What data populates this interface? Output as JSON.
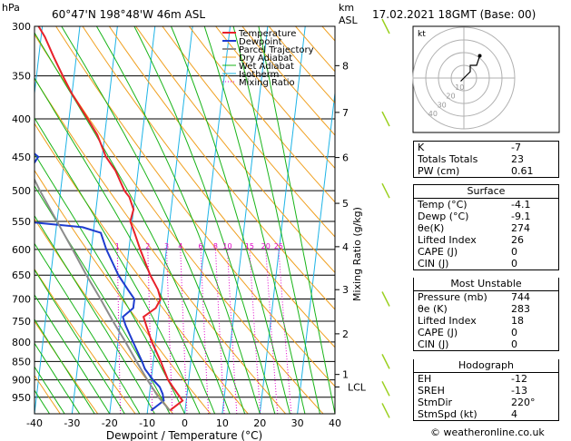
{
  "header": {
    "pressure_unit": "hPa",
    "location": "60°47'N  198°48'W  46m  ASL",
    "km_unit": "km",
    "asl_unit": "ASL",
    "datetime": "17.02.2021  18GMT  (Base: 00)"
  },
  "colors": {
    "temperature": "#e8212a",
    "dewpoint": "#1e3ccf",
    "parcel": "#8c8c8c",
    "dry_adiabat": "#f0a020",
    "wet_adiabat": "#18b418",
    "isotherm": "#1eb4e6",
    "mixing_ratio": "#e000c8"
  },
  "legend": [
    "Temperature",
    "Dewpoint",
    "Parcel Trajectory",
    "Dry Adiabat",
    "Wet Adiabat",
    "Isotherm",
    "Mixing Ratio"
  ],
  "chart_data": {
    "type": "line",
    "chart_kind": "skew-t log-p",
    "xlabel": "Dewpoint / Temperature (°C)",
    "ylabel_right": "Mixing Ratio (g/kg)",
    "x_ticks": [
      -40,
      -30,
      -20,
      -10,
      0,
      10,
      20,
      30,
      40
    ],
    "p_ticks": [
      300,
      350,
      400,
      450,
      500,
      550,
      600,
      650,
      700,
      750,
      800,
      850,
      900,
      950
    ],
    "km_ticks": [
      {
        "km": "8",
        "p": 339
      },
      {
        "km": "7",
        "p": 392
      },
      {
        "km": "6",
        "p": 451
      },
      {
        "km": "5",
        "p": 520
      },
      {
        "km": "4",
        "p": 595
      },
      {
        "km": "3",
        "p": 680
      },
      {
        "km": "2",
        "p": 780
      },
      {
        "km": "1",
        "p": 885
      }
    ],
    "lcl": {
      "label": "LCL",
      "p": 920
    },
    "mixing_ratio_labels": [
      "1",
      "2",
      "3",
      "4",
      "6",
      "8",
      "10",
      "15",
      "20",
      "25"
    ],
    "mixing_ratio_values": [
      1,
      2,
      3,
      4,
      6,
      8,
      10,
      15,
      20,
      25
    ],
    "series": [
      {
        "name": "Temperature",
        "p": [
          990,
          960,
          940,
          920,
          900,
          870,
          850,
          800,
          760,
          740,
          720,
          700,
          680,
          650,
          600,
          570,
          550,
          530,
          510,
          500,
          470,
          450,
          420,
          400,
          370,
          350,
          330,
          310,
          300
        ],
        "t": [
          -4.1,
          -1,
          -2.5,
          -4,
          -5.5,
          -7,
          -8,
          -11,
          -13,
          -14,
          -11,
          -10,
          -11,
          -13.5,
          -17,
          -19,
          -20.5,
          -20,
          -21.5,
          -23,
          -26,
          -29,
          -32,
          -35,
          -40,
          -43,
          -46,
          -49,
          -51
        ]
      },
      {
        "name": "Dewpoint",
        "p": [
          990,
          960,
          940,
          920,
          900,
          870,
          850,
          800,
          760,
          740,
          720,
          700,
          680,
          650,
          600,
          570,
          560,
          550,
          530,
          520,
          500,
          470,
          450,
          420,
          400,
          370,
          350,
          330,
          310,
          300
        ],
        "t": [
          -9.1,
          -6,
          -6.5,
          -7.5,
          -9.5,
          -12,
          -13,
          -16,
          -18.5,
          -19.5,
          -17,
          -17,
          -19,
          -22,
          -26,
          -28,
          -33,
          -49,
          -48,
          -50,
          -50,
          -49,
          -47,
          -55,
          -56,
          -53,
          -55,
          -59,
          -56,
          -59
        ]
      },
      {
        "name": "Parcel Trajectory",
        "p": [
          990,
          950,
          920,
          900,
          850,
          800,
          750,
          700,
          650,
          600,
          550,
          500,
          450,
          400,
          350,
          300
        ],
        "t": [
          -4.1,
          -7.5,
          -9.6,
          -11,
          -14.5,
          -18,
          -22,
          -26,
          -30.5,
          -35,
          -40,
          -45.5,
          -51,
          -57,
          -63,
          -70
        ]
      }
    ],
    "wind_barbs": [
      {
        "p": 300
      },
      {
        "p": 400
      },
      {
        "p": 500
      },
      {
        "p": 700
      },
      {
        "p": 850
      },
      {
        "p": 925
      },
      {
        "p": 990
      }
    ]
  },
  "hodograph": {
    "unit_label": "kt",
    "ring_labels": [
      "10",
      "20",
      "30",
      "40"
    ],
    "points_u": [
      -1,
      0,
      1,
      2,
      2,
      4,
      5
    ],
    "points_v": [
      -1,
      0,
      1,
      2,
      4,
      4,
      7
    ]
  },
  "indices": {
    "top": [
      {
        "label": "K",
        "value": "-7"
      },
      {
        "label": "Totals Totals",
        "value": "23"
      },
      {
        "label": "PW (cm)",
        "value": "0.61"
      }
    ],
    "surface_title": "Surface",
    "surface": [
      {
        "label": "Temp (°C)",
        "value": "-4.1"
      },
      {
        "label": "Dewp (°C)",
        "value": "-9.1"
      },
      {
        "label": "θe(K)",
        "value": "274"
      },
      {
        "label": "Lifted Index",
        "value": "26"
      },
      {
        "label": "CAPE (J)",
        "value": "0"
      },
      {
        "label": "CIN (J)",
        "value": "0"
      }
    ],
    "unstable_title": "Most Unstable",
    "unstable": [
      {
        "label": "Pressure (mb)",
        "value": "744"
      },
      {
        "label": "θe (K)",
        "value": "283"
      },
      {
        "label": "Lifted Index",
        "value": "18"
      },
      {
        "label": "CAPE (J)",
        "value": "0"
      },
      {
        "label": "CIN (J)",
        "value": "0"
      }
    ],
    "hodo_title": "Hodograph",
    "hodo": [
      {
        "label": "EH",
        "value": "-12"
      },
      {
        "label": "SREH",
        "value": "-13"
      },
      {
        "label": "StmDir",
        "value": "220°"
      },
      {
        "label": "StmSpd (kt)",
        "value": "4"
      }
    ]
  },
  "copyright": "© weatheronline.co.uk"
}
